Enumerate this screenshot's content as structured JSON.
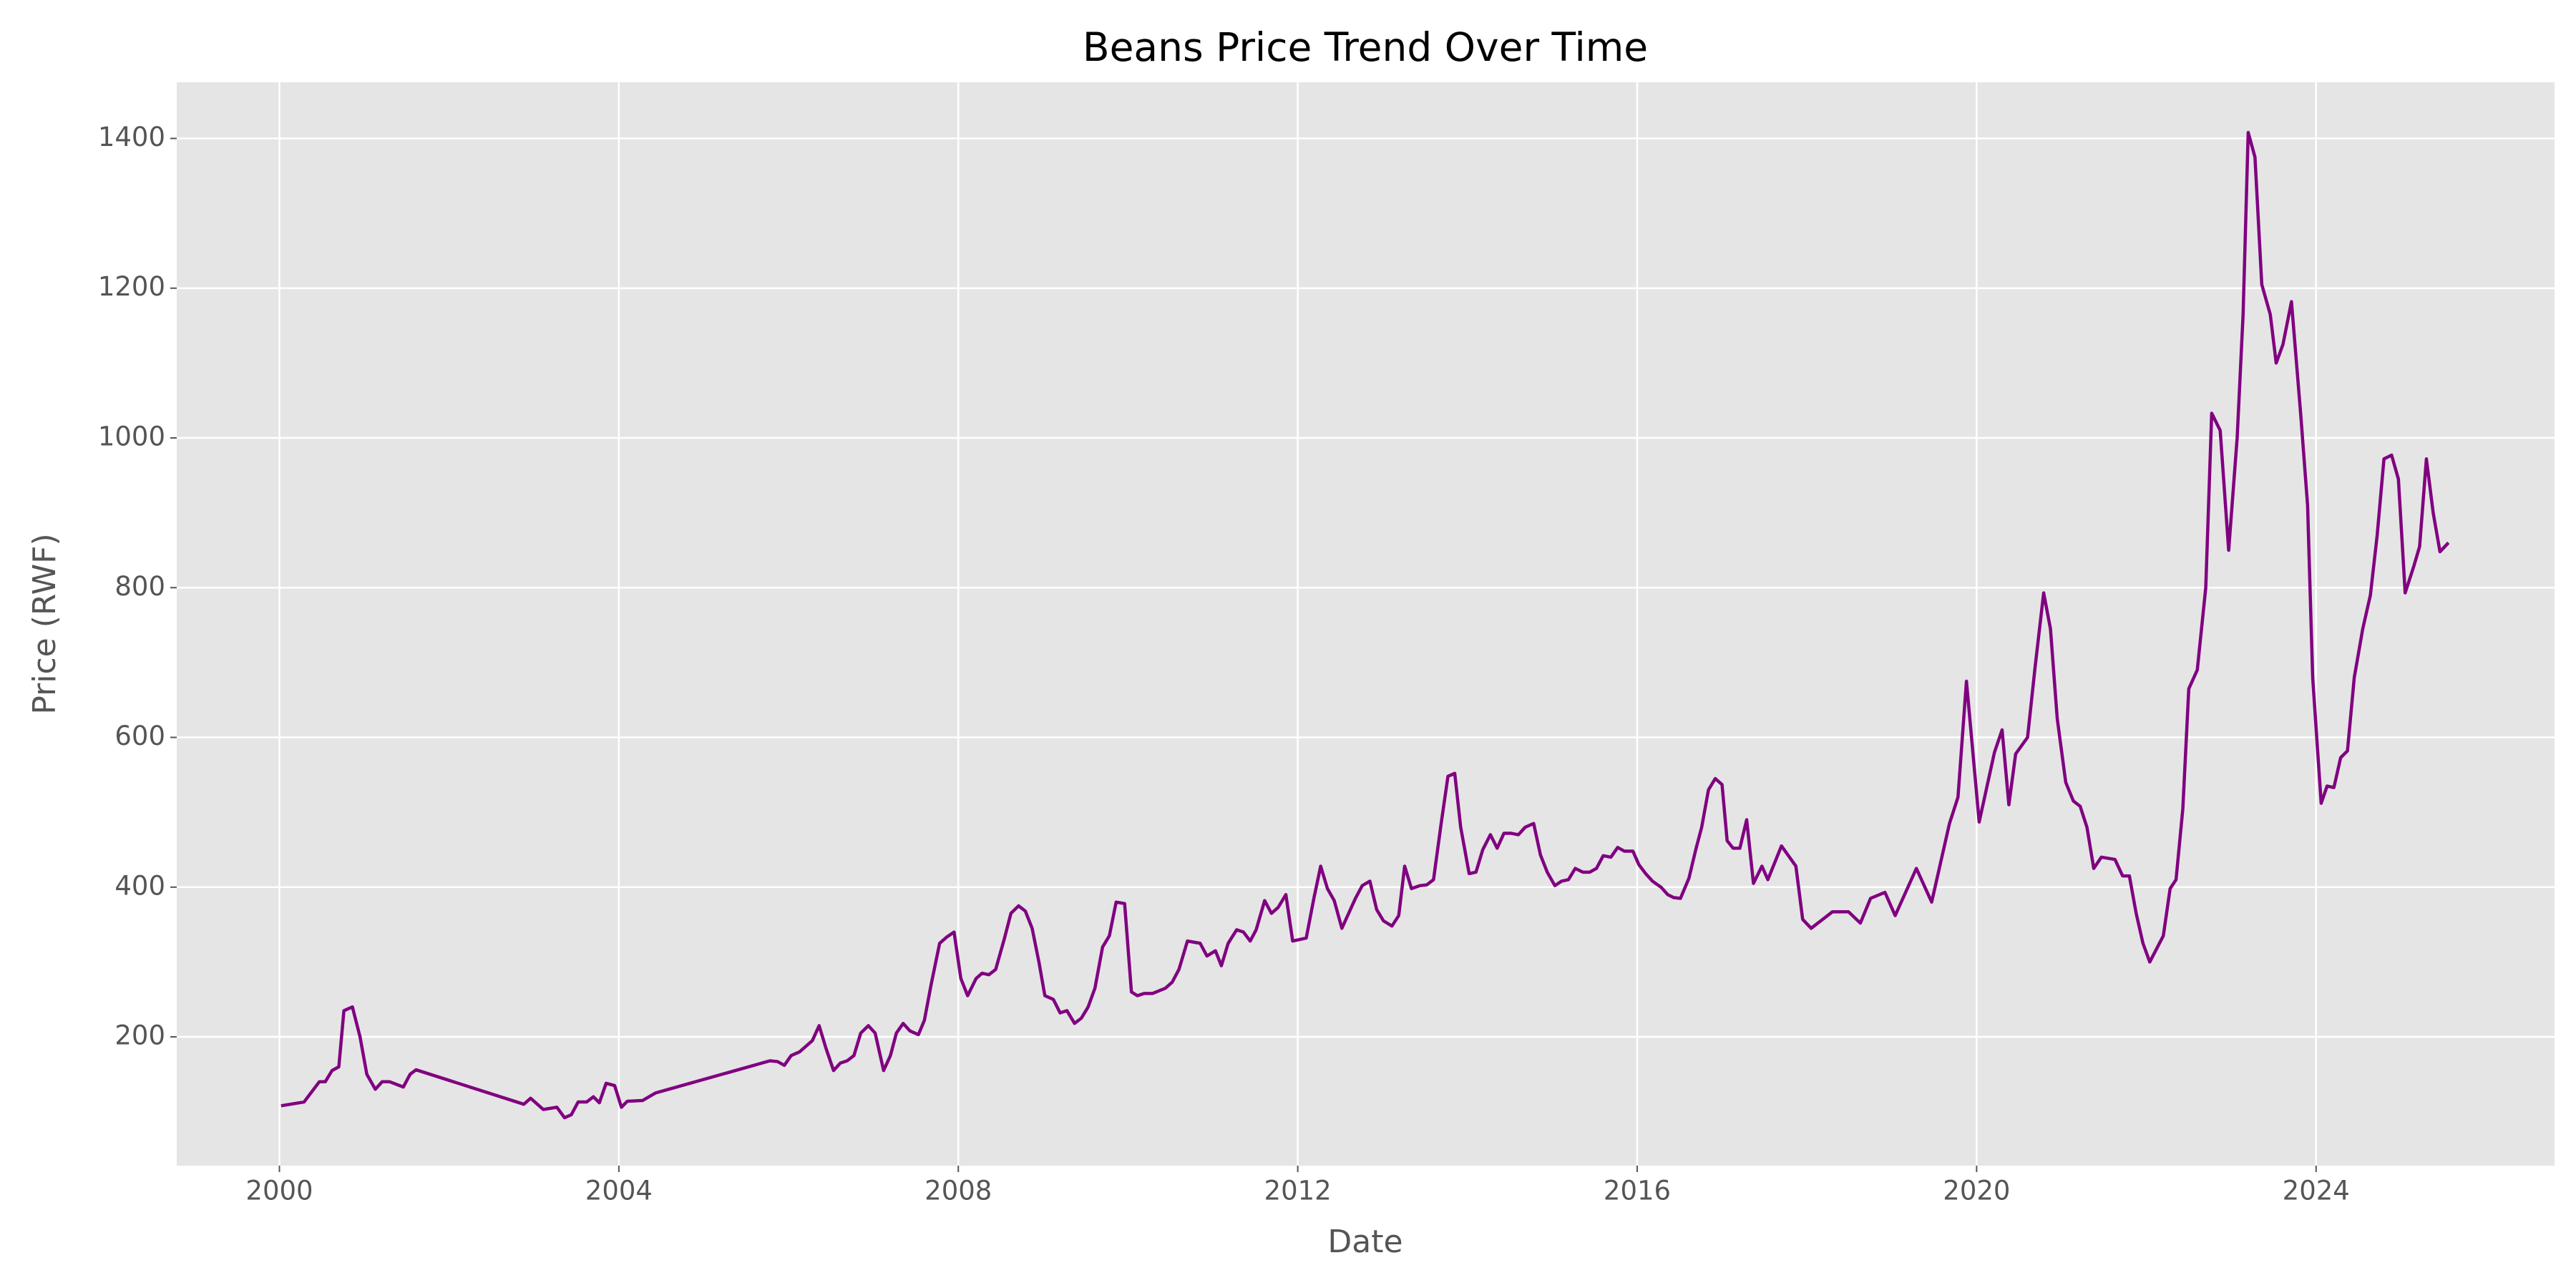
{
  "chart_data": {
    "type": "line",
    "title": "Beans Price Trend Over Time",
    "xlabel": "Date",
    "ylabel": "Price (RWF)",
    "xlim": [
      1998.79,
      2026.81
    ],
    "ylim": [
      28,
      1475
    ],
    "xticks": [
      2000,
      2004,
      2008,
      2012,
      2016,
      2020,
      2024
    ],
    "yticks": [
      200,
      400,
      600,
      800,
      1000,
      1200,
      1400
    ],
    "grid": true,
    "series": [
      {
        "color": "#800080",
        "x": [
          2000.02,
          2000.29,
          2000.47,
          2000.54,
          2000.62,
          2000.7,
          2000.76,
          2000.86,
          2000.95,
          2001.03,
          2001.13,
          2001.21,
          2001.3,
          2001.46,
          2001.54,
          2001.61,
          2002.88,
          2002.96,
          2003.11,
          2003.27,
          2003.36,
          2003.44,
          2003.52,
          2003.62,
          2003.7,
          2003.77,
          2003.85,
          2003.95,
          2004.03,
          2004.1,
          2004.28,
          2004.43,
          2005.78,
          2005.87,
          2005.95,
          2006.03,
          2006.13,
          2006.28,
          2006.36,
          2006.44,
          2006.53,
          2006.61,
          2006.69,
          2006.77,
          2006.85,
          2006.94,
          2007.02,
          2007.12,
          2007.2,
          2007.27,
          2007.35,
          2007.43,
          2007.53,
          2007.6,
          2007.68,
          2007.78,
          2007.86,
          2007.95,
          2008.03,
          2008.11,
          2008.21,
          2008.28,
          2008.36,
          2008.44,
          2008.54,
          2008.62,
          2008.71,
          2008.79,
          2008.87,
          2008.95,
          2009.02,
          2009.12,
          2009.2,
          2009.28,
          2009.37,
          2009.45,
          2009.53,
          2009.61,
          2009.7,
          2009.78,
          2009.86,
          2009.96,
          2010.04,
          2010.11,
          2010.19,
          2010.29,
          2010.44,
          2010.52,
          2010.6,
          2010.7,
          2010.85,
          2010.93,
          2011.03,
          2011.1,
          2011.18,
          2011.28,
          2011.36,
          2011.44,
          2011.51,
          2011.61,
          2011.69,
          2011.77,
          2011.86,
          2011.94,
          2012.02,
          2012.1,
          2012.19,
          2012.27,
          2012.35,
          2012.43,
          2012.52,
          2012.6,
          2012.68,
          2012.76,
          2012.85,
          2012.93,
          2013.01,
          2013.11,
          2013.19,
          2013.26,
          2013.34,
          2013.44,
          2013.52,
          2013.6,
          2013.69,
          2013.77,
          2013.85,
          2013.92,
          2014.02,
          2014.1,
          2014.18,
          2014.27,
          2014.35,
          2014.43,
          2014.51,
          2014.6,
          2014.68,
          2014.78,
          2014.86,
          2014.94,
          2015.03,
          2015.11,
          2015.19,
          2015.27,
          2015.36,
          2015.44,
          2015.52,
          2015.6,
          2015.69,
          2015.77,
          2015.85,
          2015.95,
          2016.02,
          2016.1,
          2016.18,
          2016.28,
          2016.36,
          2016.43,
          2016.51,
          2016.61,
          2016.69,
          2016.76,
          2016.84,
          2016.92,
          2017.0,
          2017.06,
          2017.13,
          2017.21,
          2017.29,
          2017.37,
          2017.47,
          2017.54,
          2017.7,
          2017.87,
          2017.95,
          2018.05,
          2018.3,
          2018.49,
          2018.63,
          2018.75,
          2018.92,
          2019.04,
          2019.29,
          2019.47,
          2019.56,
          2019.68,
          2019.78,
          2019.88,
          2020.03,
          2020.21,
          2020.3,
          2020.38,
          2020.46,
          2020.6,
          2020.69,
          2020.79,
          2020.87,
          2020.95,
          2021.05,
          2021.14,
          2021.22,
          2021.3,
          2021.38,
          2021.47,
          2021.63,
          2021.72,
          2021.8,
          2021.88,
          2021.96,
          2022.04,
          2022.2,
          2022.28,
          2022.35,
          2022.43,
          2022.5,
          2022.6,
          2022.7,
          2022.77,
          2022.87,
          2022.97,
          2023.07,
          2023.14,
          2023.2,
          2023.28,
          2023.36,
          2023.46,
          2023.53,
          2023.61,
          2023.71,
          2023.82,
          2023.9,
          2023.96,
          2024.06,
          2024.13,
          2024.21,
          2024.29,
          2024.37,
          2024.45,
          2024.55,
          2024.64,
          2024.72,
          2024.8,
          2024.89,
          2024.97,
          2025.05,
          2025.15,
          2025.22,
          2025.3,
          2025.38,
          2025.46,
          2025.56
        ],
        "values": [
          108,
          113,
          140,
          140,
          155,
          160,
          235,
          240,
          200,
          150,
          130,
          140,
          140,
          133,
          150,
          156,
          110,
          118,
          103,
          106,
          92,
          96,
          113,
          113,
          120,
          112,
          138,
          135,
          106,
          114,
          115,
          125,
          168,
          167,
          162,
          175,
          180,
          195,
          215,
          185,
          155,
          165,
          168,
          175,
          205,
          215,
          205,
          155,
          175,
          205,
          218,
          208,
          203,
          222,
          270,
          325,
          333,
          340,
          278,
          255,
          278,
          285,
          283,
          290,
          330,
          365,
          375,
          368,
          345,
          300,
          255,
          250,
          232,
          235,
          218,
          225,
          240,
          265,
          320,
          335,
          380,
          378,
          260,
          255,
          258,
          258,
          265,
          273,
          290,
          328,
          325,
          308,
          315,
          295,
          325,
          343,
          340,
          328,
          343,
          382,
          365,
          373,
          390,
          328,
          330,
          332,
          385,
          428,
          398,
          382,
          345,
          365,
          385,
          402,
          408,
          370,
          355,
          348,
          362,
          428,
          398,
          402,
          403,
          410,
          485,
          548,
          552,
          480,
          418,
          420,
          450,
          470,
          452,
          472,
          472,
          470,
          480,
          485,
          443,
          420,
          402,
          408,
          410,
          425,
          420,
          420,
          425,
          442,
          440,
          453,
          448,
          448,
          430,
          418,
          408,
          400,
          390,
          386,
          385,
          412,
          450,
          480,
          530,
          545,
          537,
          462,
          452,
          452,
          490,
          405,
          428,
          410,
          455,
          428,
          357,
          345,
          367,
          367,
          352,
          385,
          393,
          362,
          425,
          380,
          425,
          485,
          520,
          675,
          487,
          580,
          610,
          510,
          578,
          600,
          695,
          793,
          745,
          625,
          540,
          515,
          508,
          480,
          425,
          440,
          437,
          415,
          415,
          365,
          325,
          300,
          335,
          398,
          410,
          505,
          665,
          690,
          800,
          1033,
          1010,
          850,
          1000,
          1165,
          1408,
          1375,
          1205,
          1165,
          1100,
          1125,
          1182,
          1030,
          910,
          680,
          512,
          535,
          533,
          573,
          582,
          680,
          745,
          790,
          870,
          972,
          977,
          945,
          793,
          828,
          855,
          972,
          900,
          848,
          860
        ]
      }
    ]
  }
}
